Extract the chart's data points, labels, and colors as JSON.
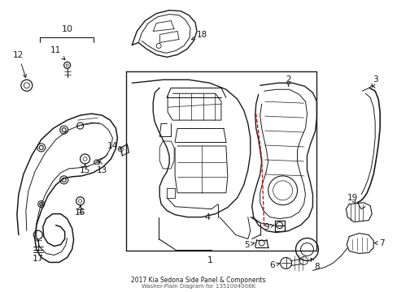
{
  "title": "2017 Kia Sedona Side Panel & Components",
  "subtitle": "Washer-Plain Diagram for 1351004006K",
  "bg_color": "#ffffff",
  "line_color": "#1a1a1a",
  "red_color": "#cc0000",
  "figsize": [
    4.89,
    3.6
  ],
  "dpi": 100
}
